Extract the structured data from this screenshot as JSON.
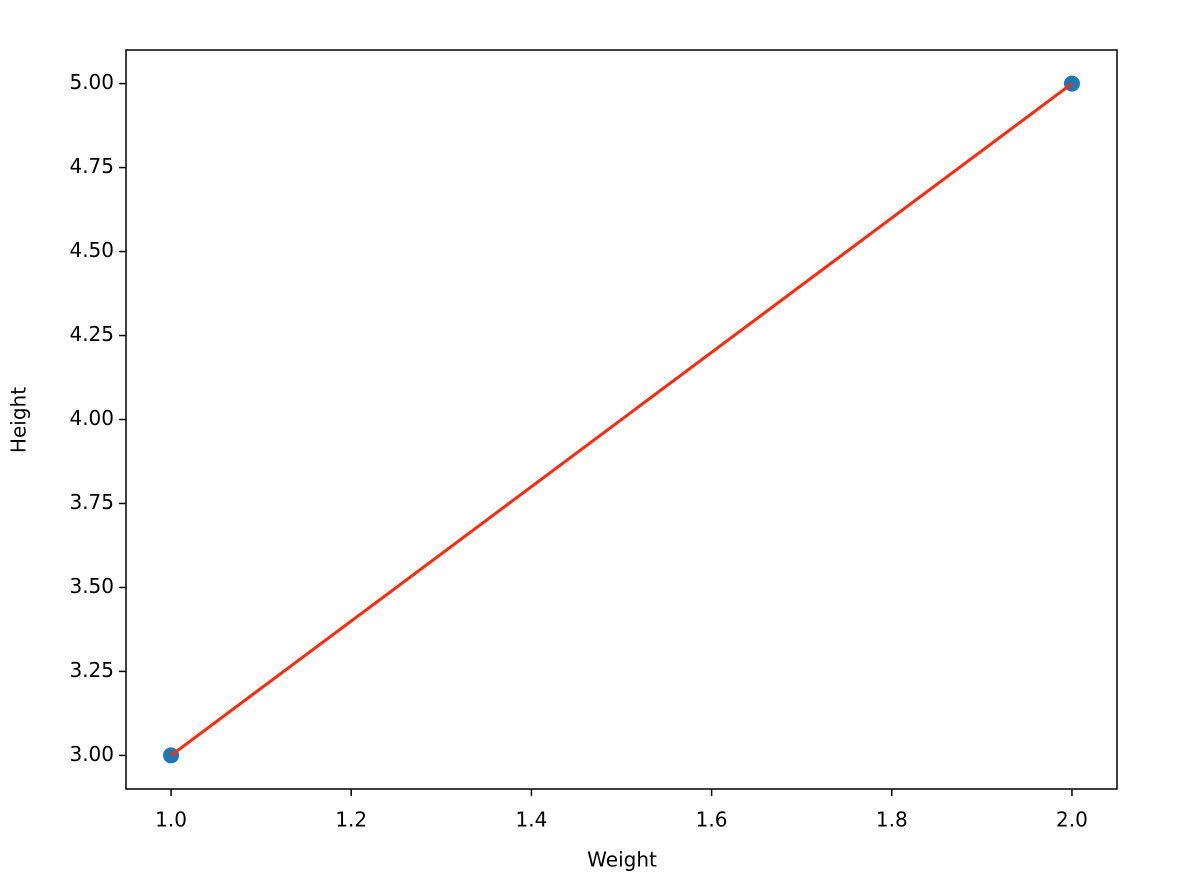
{
  "chart_data": {
    "type": "scatter",
    "xlabel": "Weight",
    "ylabel": "Height",
    "xlim": [
      0.95,
      2.05
    ],
    "ylim": [
      2.9,
      5.1
    ],
    "xticks": [
      {
        "value": 1,
        "label": "1.0"
      },
      {
        "value": 1.2,
        "label": "1.2"
      },
      {
        "value": 1.4,
        "label": "1.4"
      },
      {
        "value": 1.6,
        "label": "1.6"
      },
      {
        "value": 1.8,
        "label": "1.8"
      },
      {
        "value": 2,
        "label": "2.0"
      }
    ],
    "yticks": [
      {
        "value": 3,
        "label": "3.00"
      },
      {
        "value": 3.25,
        "label": "3.25"
      },
      {
        "value": 3.5,
        "label": "3.50"
      },
      {
        "value": 3.75,
        "label": "3.75"
      },
      {
        "value": 4,
        "label": "4.00"
      },
      {
        "value": 4.25,
        "label": "4.25"
      },
      {
        "value": 4.5,
        "label": "4.50"
      },
      {
        "value": 4.75,
        "label": "4.75"
      },
      {
        "value": 5,
        "label": "5.00"
      }
    ],
    "series": [
      {
        "type": "scatter",
        "color": "#1f77b4",
        "x": [
          1,
          2
        ],
        "values": [
          3,
          5
        ]
      },
      {
        "type": "line",
        "color": "#ff2a0a",
        "x": [
          1,
          2
        ],
        "values": [
          3,
          5
        ]
      }
    ]
  }
}
